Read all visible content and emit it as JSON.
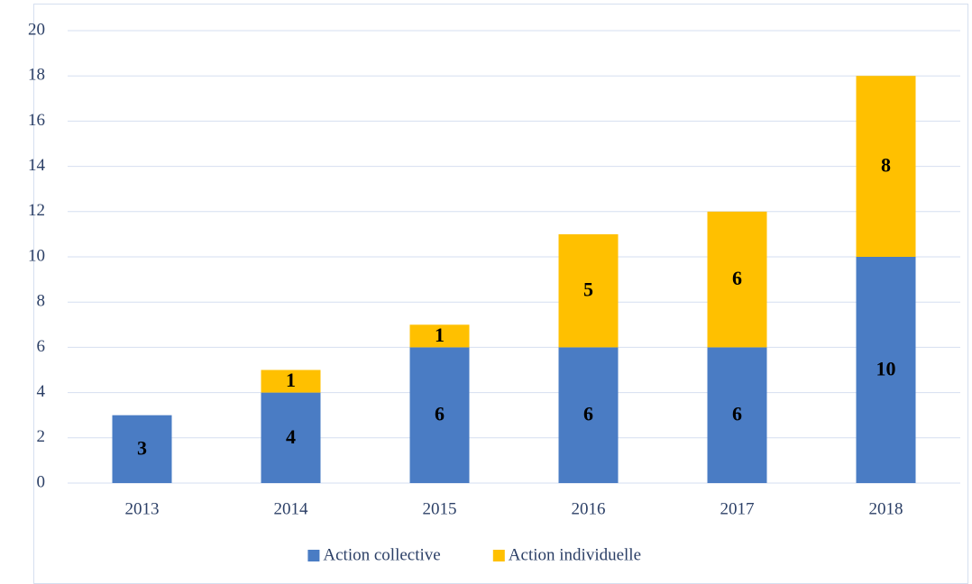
{
  "chart_data": {
    "type": "stacked_bar",
    "categories": [
      "2013",
      "2014",
      "2015",
      "2016",
      "2017",
      "2018"
    ],
    "series": [
      {
        "name": "Action collective",
        "color": "#4a7cc4",
        "values": [
          3,
          4,
          6,
          6,
          6,
          10
        ]
      },
      {
        "name": "Action individuelle",
        "color": "#ffc000",
        "values": [
          null,
          1,
          1,
          5,
          6,
          8
        ]
      }
    ],
    "ylim": [
      0,
      20
    ],
    "yticks": [
      0,
      2,
      4,
      6,
      8,
      10,
      12,
      14,
      16,
      18,
      20
    ],
    "grid": true,
    "legend": "bottom"
  }
}
